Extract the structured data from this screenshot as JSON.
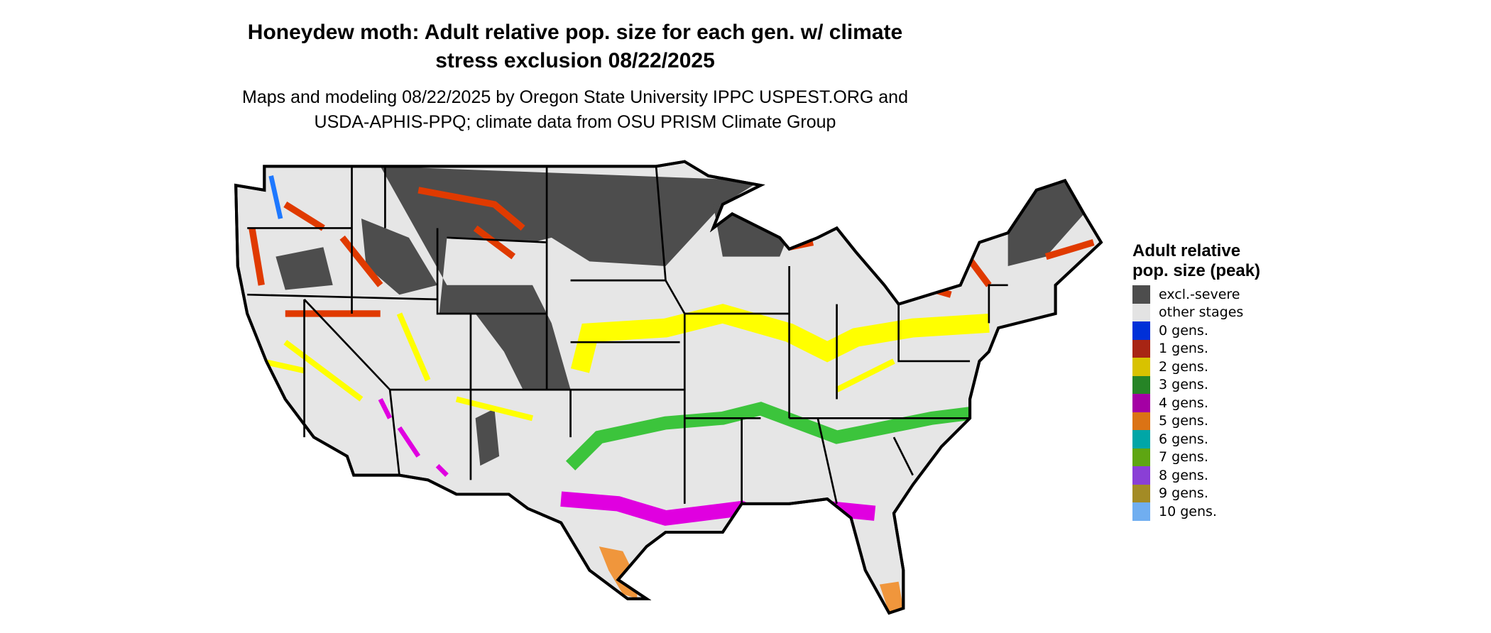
{
  "title_line1": "Honeydew moth: Adult relative pop. size for each gen. w/ climate",
  "title_line2": "stress exclusion 08/22/2025",
  "subtitle_line1": "Maps and modeling 08/22/2025 by Oregon State University IPPC USPEST.ORG and",
  "subtitle_line2": "USDA-APHIS-PPQ; climate data from OSU PRISM Climate Group",
  "legend": {
    "title": "Adult relative pop. size (peak)",
    "items": [
      {
        "label": "excl.-severe",
        "color": "#4d4d4d"
      },
      {
        "label": "other stages",
        "color": "#e3e3e3"
      },
      {
        "label": "0 gens.",
        "color": "#0030d8"
      },
      {
        "label": "1 gens.",
        "color": "#a82514"
      },
      {
        "label": "2 gens.",
        "color": "#d8c200"
      },
      {
        "label": "3 gens.",
        "color": "#268426"
      },
      {
        "label": "4 gens.",
        "color": "#a400a4"
      },
      {
        "label": "5 gens.",
        "color": "#db7315"
      },
      {
        "label": "6 gens.",
        "color": "#00a6a6"
      },
      {
        "label": "7 gens.",
        "color": "#5ea612"
      },
      {
        "label": "8 gens.",
        "color": "#8a3fd6"
      },
      {
        "label": "9 gens.",
        "color": "#a38b25"
      },
      {
        "label": "10 gens.",
        "color": "#70aef0"
      }
    ]
  },
  "map_colors": {
    "background": "#e6e6e6",
    "excluded": "#4d4d4d",
    "red": "#e03a00",
    "yellow": "#ffff00",
    "green": "#3cc43c",
    "magenta": "#e000e0",
    "orange": "#f0963c",
    "blue": "#1e78ff"
  }
}
